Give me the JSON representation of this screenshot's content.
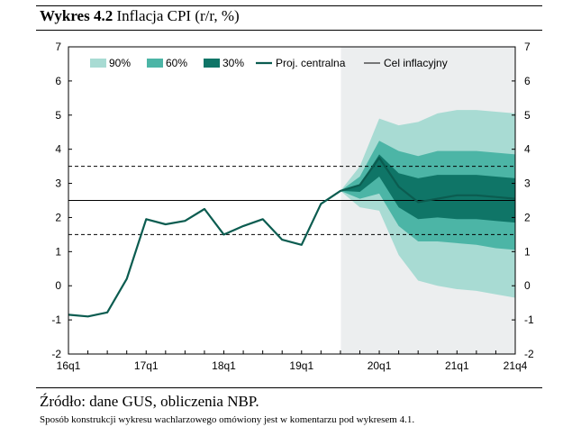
{
  "caption": {
    "label": "Wykres 4.2",
    "title": "Inflacja CPI (r/r, %)"
  },
  "source": "Źródło: dane GUS, obliczenia NBP.",
  "note": "Sposób konstrukcji wykresu wachlarzowego omówiony jest w komentarzu pod wykresem 4.1.",
  "chart_data": {
    "type": "area",
    "title": "Inflacja CPI (r/r, %)",
    "xlabel": "",
    "ylabel": "",
    "x": [
      "16q1",
      "16q2",
      "16q3",
      "16q4",
      "17q1",
      "17q2",
      "17q3",
      "17q4",
      "18q1",
      "18q2",
      "18q3",
      "18q4",
      "19q1",
      "19q2",
      "19q3",
      "19q4",
      "20q1",
      "20q2",
      "20q3",
      "20q4",
      "21q1",
      "21q2",
      "21q3",
      "21q4"
    ],
    "x_tick_labels": [
      "16q1",
      "17q1",
      "18q1",
      "19q1",
      "20q1",
      "21q1",
      "21q4"
    ],
    "ylim": [
      -2,
      7
    ],
    "y_ticks": [
      -2,
      -1,
      0,
      1,
      2,
      3,
      4,
      5,
      6,
      7
    ],
    "grid": false,
    "legend_position": "top",
    "projection_start": "19q4",
    "colors": {
      "band_90": "#a8dbd3",
      "band_60": "#4cb5a6",
      "band_30": "#0f7567",
      "line": "#0b5c50",
      "shading": "#eceeef",
      "target": "#000000"
    },
    "legend": [
      "90%",
      "60%",
      "30%",
      "Proj. centralna",
      "Cel inflacyjny"
    ],
    "series": [
      {
        "name": "Proj. centralna",
        "values": [
          -0.85,
          -0.9,
          -0.78,
          0.2,
          1.95,
          1.8,
          1.9,
          2.25,
          1.5,
          1.75,
          1.95,
          1.35,
          1.2,
          2.4,
          2.78,
          2.95,
          3.75,
          2.9,
          2.45,
          2.55,
          2.65,
          2.65,
          2.6,
          2.55
        ]
      }
    ],
    "fan_bands": {
      "x_start": "19q3",
      "band_90": {
        "lower": [
          2.78,
          2.3,
          2.2,
          0.9,
          0.15,
          0.0,
          -0.1,
          -0.15,
          -0.25,
          -0.35
        ],
        "upper": [
          2.78,
          3.5,
          4.9,
          4.7,
          4.8,
          5.05,
          5.15,
          5.15,
          5.1,
          5.05
        ]
      },
      "band_60": {
        "lower": [
          2.78,
          2.55,
          2.7,
          1.75,
          1.3,
          1.3,
          1.25,
          1.2,
          1.1,
          1.05
        ],
        "upper": [
          2.78,
          3.2,
          4.25,
          3.95,
          3.8,
          3.95,
          3.95,
          3.95,
          3.9,
          3.85
        ]
      },
      "band_30": {
        "lower": [
          2.78,
          2.75,
          3.2,
          2.3,
          1.95,
          2.0,
          1.95,
          1.95,
          1.9,
          1.85
        ],
        "upper": [
          2.78,
          2.95,
          3.85,
          3.3,
          3.15,
          3.25,
          3.25,
          3.25,
          3.2,
          3.15
        ]
      }
    },
    "reference_lines": [
      {
        "name": "Cel inflacyjny",
        "value": 2.5,
        "style": "solid"
      },
      {
        "value": 3.5,
        "style": "dashed"
      },
      {
        "value": 1.5,
        "style": "dashed"
      }
    ]
  }
}
